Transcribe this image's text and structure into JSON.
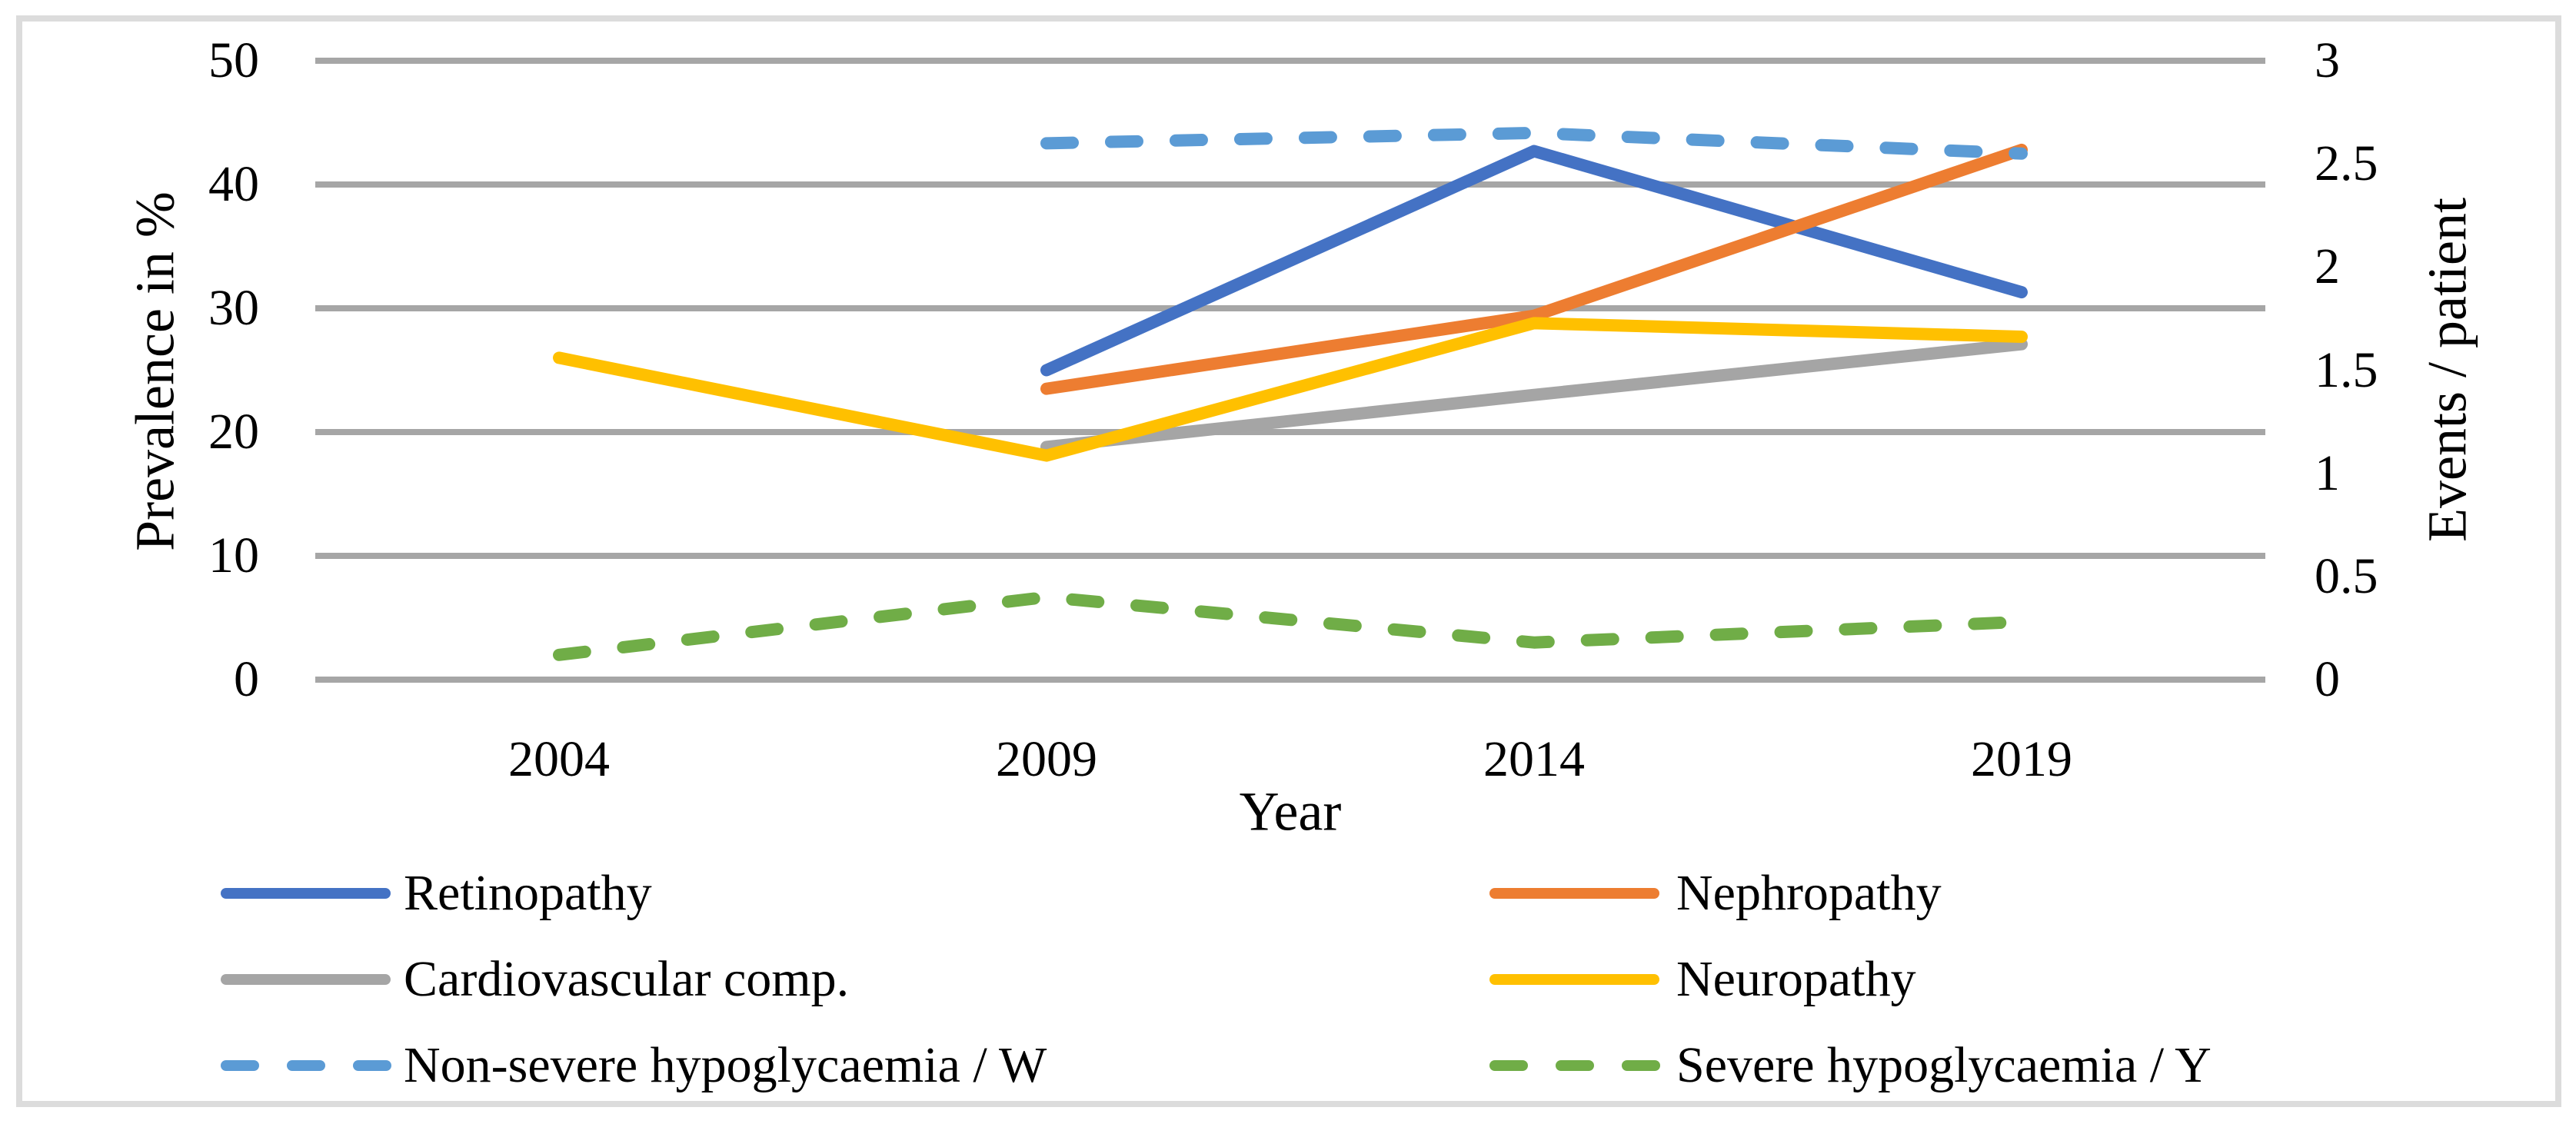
{
  "figure": {
    "background": "#FFFFFF",
    "border_color": "#DCDCDC",
    "gridline_color": "#A6A6A6",
    "text_color": "#000000"
  },
  "chart_data": {
    "type": "line",
    "title": "",
    "categories": [
      "2004",
      "2009",
      "2014",
      "2019"
    ],
    "xlabel": "Year",
    "left_axis": {
      "label": "Prevalence in %",
      "min": 0,
      "max": 50,
      "tick_values": [
        0,
        10,
        20,
        30,
        40,
        50
      ],
      "tick_labels": [
        "0",
        "10",
        "20",
        "30",
        "40",
        "50"
      ]
    },
    "right_axis": {
      "label": "Events / patient",
      "min": 0,
      "max": 3,
      "tick_values": [
        0,
        0.5,
        1,
        1.5,
        2,
        2.5,
        3
      ],
      "tick_labels": [
        "0",
        "0.5",
        "1",
        "1.5",
        "2",
        "2.5",
        "3"
      ]
    },
    "grid": "horizontal",
    "legend_position": "bottom, two columns",
    "series": [
      {
        "name": "Retinopathy",
        "color": "#4472C4",
        "style": "solid",
        "axis": "left",
        "values": [
          null,
          25,
          42.7,
          31.3
        ]
      },
      {
        "name": "Nephropathy",
        "color": "#ED7D31",
        "style": "solid",
        "axis": "left",
        "values": [
          null,
          23.5,
          29.4,
          42.8
        ]
      },
      {
        "name": "Cardiovascular comp.",
        "color": "#A5A5A5",
        "style": "solid",
        "axis": "left",
        "values": [
          null,
          18.8,
          23,
          27.1
        ]
      },
      {
        "name": "Neuropathy",
        "color": "#FFC000",
        "style": "solid",
        "axis": "left",
        "values": [
          26,
          18.1,
          28.8,
          27.7
        ]
      },
      {
        "name": "Non-severe hypoglycaemia / W",
        "color": "#5B9BD5",
        "style": "dashed",
        "axis": "right",
        "values": [
          null,
          2.6,
          2.65,
          2.55
        ]
      },
      {
        "name": "Severe hypoglycaemia / Y",
        "color": "#70AD47",
        "style": "dashed",
        "axis": "right",
        "values": [
          0.12,
          0.4,
          0.18,
          0.28
        ]
      }
    ],
    "legend_columns": [
      [
        "Retinopathy",
        "Cardiovascular comp.",
        "Non-severe hypoglycaemia / W"
      ],
      [
        "Nephropathy",
        "Neuropathy",
        "Severe hypoglycaemia / Y"
      ]
    ]
  }
}
